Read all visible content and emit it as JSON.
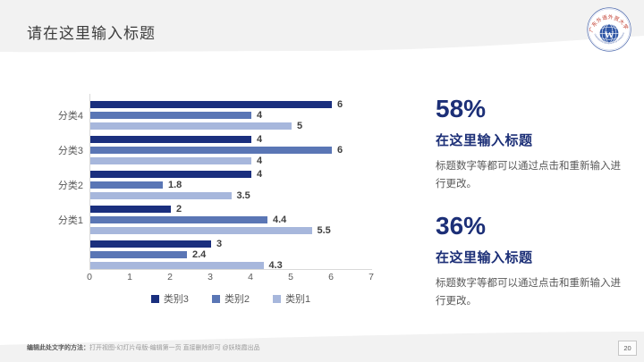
{
  "header": {
    "title": "请在这里输入标题"
  },
  "logo": {
    "top_text": "广东外语外贸大学",
    "bottom_text": "GUANGDONG UNIVERSITY OF FOREIGN STUDIES",
    "monogram": "W",
    "ring_color": "#4a66ab",
    "globe_color": "#2e55a5",
    "arc_text_color": "#bf3526"
  },
  "chart_data": {
    "type": "bar",
    "orientation": "horizontal",
    "categories": [
      "分类4",
      "分类3",
      "分类2",
      "分类1",
      ""
    ],
    "series": [
      {
        "name": "类别3",
        "color": "#1a2f7e",
        "values": [
          6,
          4,
          4,
          2,
          3
        ]
      },
      {
        "name": "类别2",
        "color": "#5a76b5",
        "values": [
          4,
          6,
          1.8,
          4.4,
          2.4
        ]
      },
      {
        "name": "类别1",
        "color": "#a7b7dc",
        "values": [
          5,
          4,
          3.5,
          5.5,
          4.3
        ]
      }
    ],
    "xlim": [
      0,
      7
    ],
    "x_ticks": [
      0,
      1,
      2,
      3,
      4,
      5,
      6,
      7
    ],
    "value_labels": true,
    "grid": false,
    "legend_position": "bottom",
    "title": "",
    "xlabel": "",
    "ylabel": ""
  },
  "stats": [
    {
      "value": "58%",
      "title": "在这里输入标题",
      "body": "标题数字等都可以通过点击和重新输入进行更改。"
    },
    {
      "value": "36%",
      "title": "在这里输入标题",
      "body": "标题数字等都可以通过点击和重新输入进行更改。"
    }
  ],
  "footer": {
    "lead": "编辑此处文字的方法：",
    "text": "打开视图-幻灯片母版-编辑第一页 直接删除即可 @妖晓霞出品",
    "page_number": "20"
  },
  "colors": {
    "accent_navy": "#1c2f77",
    "band_gray": "#f2f2f2",
    "body_gray": "#595959"
  }
}
